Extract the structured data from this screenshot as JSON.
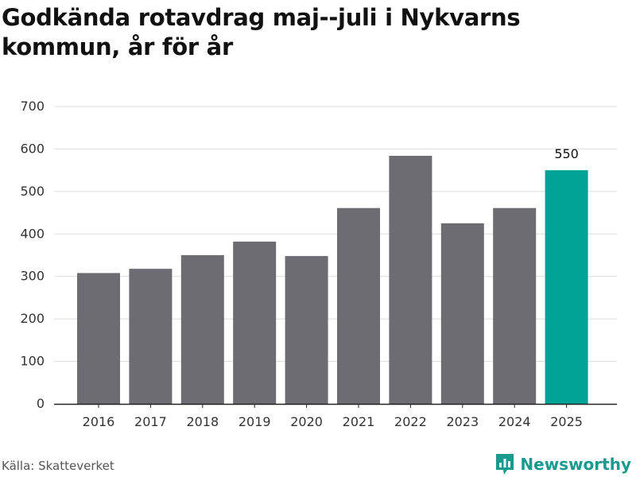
{
  "chart_data": {
    "type": "bar",
    "title": "Godkända rotavdrag maj--juli i Nykvarns kommun, år för år",
    "categories": [
      "2016",
      "2017",
      "2018",
      "2019",
      "2020",
      "2021",
      "2022",
      "2023",
      "2024",
      "2025"
    ],
    "values": [
      308,
      318,
      350,
      382,
      348,
      461,
      584,
      425,
      461,
      550
    ],
    "ylim": [
      0,
      700
    ],
    "yticks": [
      0,
      100,
      200,
      300,
      400,
      500,
      600,
      700
    ],
    "grid": true,
    "highlight_index": 9,
    "data_labels": [
      {
        "index": 9,
        "text": "550"
      }
    ],
    "colors": {
      "bar": "#6d6c72",
      "highlight": "#00a396",
      "grid": "#dddddd",
      "axis": "#222222"
    }
  },
  "footer": {
    "source": "Källa: Skatteverket",
    "brand": "Newsworthy",
    "brand_icon": "newsworthy-logo-icon"
  }
}
